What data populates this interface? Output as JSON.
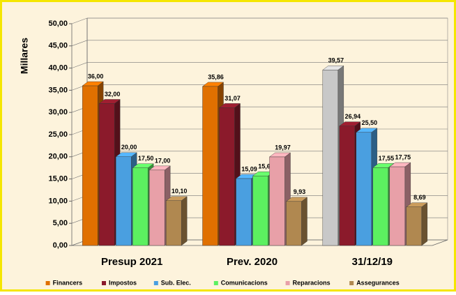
{
  "chart_data": {
    "type": "bar3d",
    "y_label": "Millares",
    "categories": [
      "Presup 2021",
      "Prev. 2020",
      "31/12/19"
    ],
    "series": [
      {
        "name": "Financers",
        "color": "#e07000",
        "point_colors": [
          "#e07000",
          "#e07000",
          "#c8c8c8"
        ],
        "values": [
          36.0,
          35.86,
          39.57
        ],
        "value_labels": [
          "36,00",
          "35,86",
          "39,57"
        ]
      },
      {
        "name": "Impostos",
        "color": "#8b1a2b",
        "values": [
          32.0,
          31.07,
          26.94
        ],
        "value_labels": [
          "32,00",
          "31,07",
          "26,94"
        ]
      },
      {
        "name": "Sub. Elec.",
        "color": "#4a9fe0",
        "values": [
          20.0,
          15.09,
          25.5
        ],
        "value_labels": [
          "20,00",
          "15,09",
          "25,50"
        ]
      },
      {
        "name": "Comunicacions",
        "color": "#5cf060",
        "values": [
          17.5,
          15.69,
          17.55
        ],
        "value_labels": [
          "17,50",
          "15,69",
          "17,55"
        ]
      },
      {
        "name": "Reparacions",
        "color": "#e8a0a8",
        "values": [
          17.0,
          19.97,
          17.75
        ],
        "value_labels": [
          "17,00",
          "19,97",
          "17,75"
        ]
      },
      {
        "name": "Assegurances",
        "color": "#b08850",
        "values": [
          10.1,
          9.93,
          8.69
        ],
        "value_labels": [
          "10,10",
          "9,93",
          "8,69"
        ]
      }
    ],
    "ylim": [
      0,
      50
    ],
    "yticks": [
      {
        "value": 0,
        "label": "0,00"
      },
      {
        "value": 5,
        "label": "5,00"
      },
      {
        "value": 10,
        "label": "10,00"
      },
      {
        "value": 15,
        "label": "15,00"
      },
      {
        "value": 20,
        "label": "20,00"
      },
      {
        "value": 25,
        "label": "25,00"
      },
      {
        "value": 30,
        "label": "30,00"
      },
      {
        "value": 35,
        "label": "35,00"
      },
      {
        "value": 40,
        "label": "40,00"
      },
      {
        "value": 45,
        "label": "45,00"
      },
      {
        "value": 50,
        "label": "50,00"
      }
    ],
    "grid": true,
    "legend": "bottom"
  }
}
